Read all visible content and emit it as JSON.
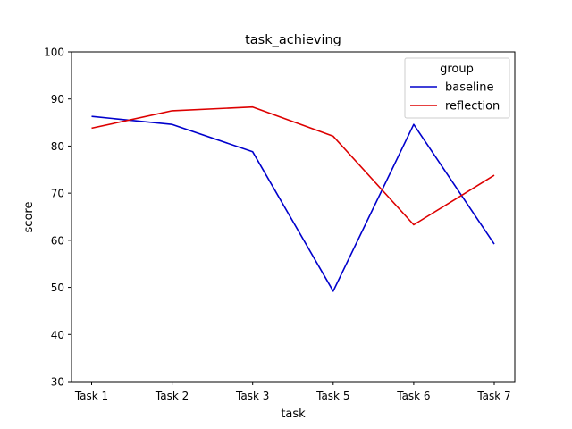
{
  "chart_data": {
    "type": "line",
    "title": "task_achieving",
    "xlabel": "task",
    "ylabel": "score",
    "categories": [
      "Task 1",
      "Task 2",
      "Task 3",
      "Task 5",
      "Task 6",
      "Task 7"
    ],
    "ylim": [
      30,
      100
    ],
    "yticks": [
      30,
      40,
      50,
      60,
      70,
      80,
      90,
      100
    ],
    "grid": false,
    "legend": {
      "title": "group",
      "placement": "top-right"
    },
    "series": [
      {
        "name": "baseline",
        "color": "#0000cc",
        "values": [
          86.3,
          84.6,
          78.8,
          49.2,
          84.6,
          59.2
        ]
      },
      {
        "name": "reflection",
        "color": "#dd0000",
        "values": [
          83.8,
          87.5,
          88.3,
          82.1,
          63.3,
          73.8
        ]
      }
    ]
  }
}
